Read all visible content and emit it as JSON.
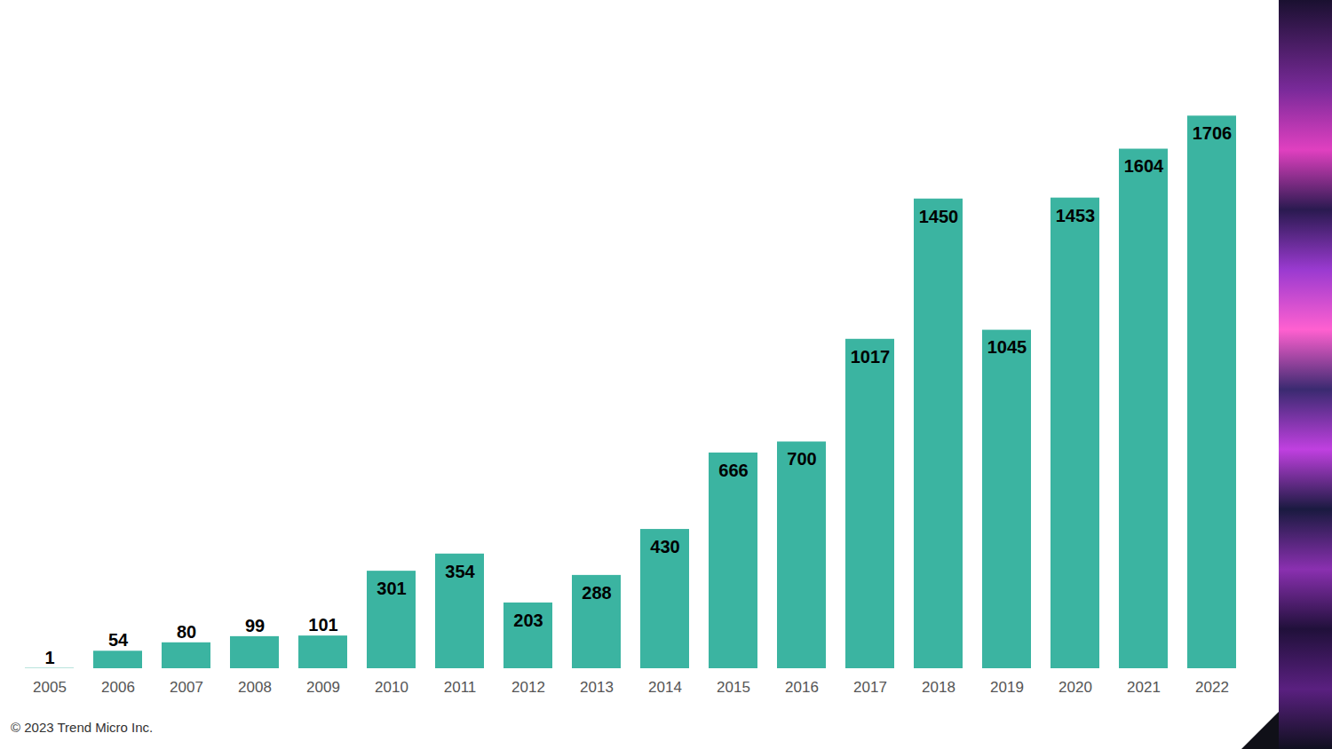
{
  "chart_data": {
    "type": "bar",
    "categories": [
      "2005",
      "2006",
      "2007",
      "2008",
      "2009",
      "2010",
      "2011",
      "2012",
      "2013",
      "2014",
      "2015",
      "2016",
      "2017",
      "2018",
      "2019",
      "2020",
      "2021",
      "2022"
    ],
    "values": [
      1,
      54,
      80,
      99,
      101,
      301,
      354,
      203,
      288,
      430,
      666,
      700,
      1017,
      1450,
      1045,
      1453,
      1604,
      1706
    ],
    "color": "#3bb4a1",
    "ylim": [
      0,
      2000
    ],
    "data_labels": true,
    "tick_labels": "x",
    "grid": false,
    "caption": "© 2023 Trend Micro Inc."
  }
}
